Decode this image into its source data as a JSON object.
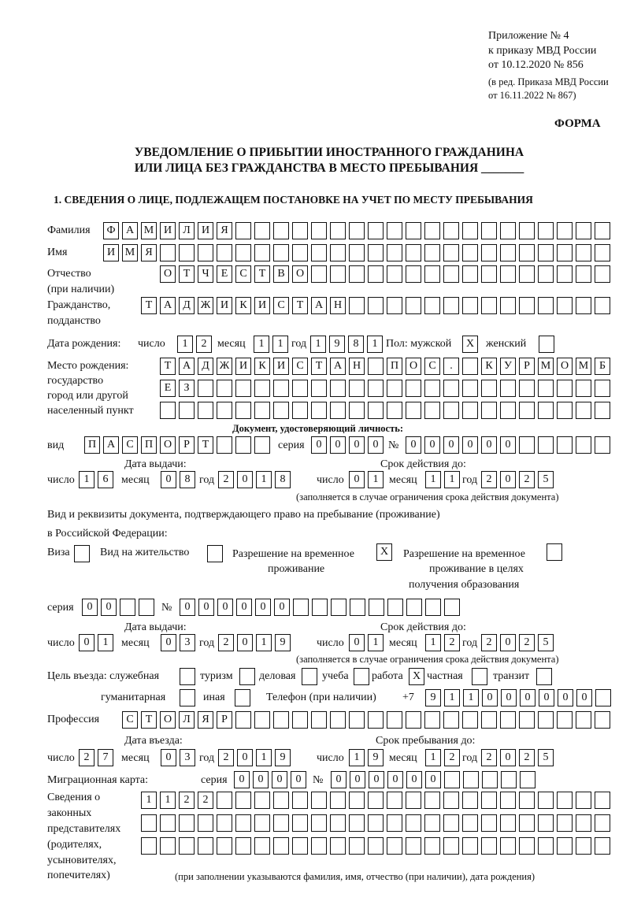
{
  "header": {
    "appendix": "Приложение № 4",
    "order": "к приказу МВД России",
    "order_date": "от 10.12.2020 № 856",
    "edition_1": "(в ред. Приказа МВД России",
    "edition_2": "от 16.11.2022 № 867)",
    "form_label": "ФОРМА"
  },
  "title": {
    "line1": "УВЕДОМЛЕНИЕ О ПРИБЫТИИ ИНОСТРАННОГО ГРАЖДАНИНА",
    "line2": "ИЛИ ЛИЦА БЕЗ ГРАЖДАНСТВА В МЕСТО ПРЕБЫВАНИЯ _______"
  },
  "section1": {
    "heading": "1. СВЕДЕНИЯ О ЛИЦЕ, ПОДЛЕЖАЩЕМ ПОСТАНОВКЕ НА УЧЕТ ПО МЕСТУ ПРЕБЫВАНИЯ",
    "surname": {
      "label": "Фамилия",
      "value": "ФАМИЛИЯ"
    },
    "name": {
      "label": "Имя",
      "value": "ИМЯ"
    },
    "patronymic": {
      "label1": "Отчество",
      "label2": "(при наличии)",
      "value": "ОТЧЕСТВО"
    },
    "citizenship": {
      "label1": "Гражданство,",
      "label2": "подданство",
      "value": "ТАДЖИКИСТАН"
    },
    "birth_date": {
      "label": "Дата рождения:",
      "day_label": "число",
      "day": "12",
      "month_label": "месяц",
      "month": "11",
      "year_label": "год",
      "year": "1981"
    },
    "sex": {
      "label_male": "Пол: мужской",
      "male": "X",
      "label_female": "женский",
      "female": ""
    },
    "birth_place": {
      "label1": "Место рождения:",
      "label2": "государство",
      "label3": "город или другой",
      "label4": "населенный пункт",
      "line1": "ТАДЖИКИСТАН ПОС. КУРМОМБ",
      "line2": "ЕЗ",
      "line3": ""
    },
    "id_document": {
      "heading": "Документ, удостоверяющий личность:",
      "type_label": "вид",
      "type": "ПАСПОРТ",
      "series_label": "серия",
      "series": "0000",
      "number_label": "№",
      "number": "000000",
      "issue_label": "Дата выдачи:",
      "valid_label": "Срок действия до:",
      "day_label": "число",
      "month_label": "месяц",
      "year_label": "год",
      "issue_day": "16",
      "issue_month": "08",
      "issue_year": "2018",
      "valid_day": "01",
      "valid_month": "11",
      "valid_year": "2025",
      "note": "(заполняется в случае ограничения срока действия документа)"
    },
    "stay_document": {
      "heading1": "Вид и реквизиты документа, подтверждающего право на пребывание (проживание)",
      "heading2": "в Российской Федерации:",
      "visa_label": "Виза",
      "visa": "",
      "residence_label": "Вид на жительство",
      "residence": "",
      "temp_label1": "Разрешение на временное",
      "temp_label2": "проживание",
      "temp": "X",
      "edu_label1": "Разрешение на временное",
      "edu_label2": "проживание в целях",
      "edu_label3": "получения образования",
      "edu": "",
      "series_label": "серия",
      "series": "00",
      "number_label": "№",
      "number": "000000",
      "issue_label": "Дата выдачи:",
      "valid_label": "Срок действия до:",
      "day_label": "число",
      "month_label": "месяц",
      "year_label": "год",
      "issue_day": "01",
      "issue_month": "03",
      "issue_year": "2019",
      "valid_day": "01",
      "valid_month": "12",
      "valid_year": "2025",
      "note": "(заполняется в случае ограничения срока действия документа)"
    },
    "purpose": {
      "label": "Цель въезда: служебная",
      "official": "",
      "tourism_label": "туризм",
      "tourism": "",
      "business_label": "деловая",
      "business": "",
      "study_label": "учеба",
      "study": "",
      "work_label": "работа",
      "work": "X",
      "private_label": "частная",
      "private": "",
      "transit_label": "транзит",
      "transit": "",
      "humanitarian_label": "гуманитарная",
      "humanitarian": "",
      "other_label": "иная",
      "other": ""
    },
    "phone": {
      "label": "Телефон (при наличии)",
      "prefix": "+7",
      "value": "911000000"
    },
    "profession": {
      "label": "Профессия",
      "value": "СТОЛЯР"
    },
    "entry": {
      "entry_label": "Дата въезда:",
      "stay_label": "Срок пребывания до:",
      "day_label": "число",
      "month_label": "месяц",
      "year_label": "год",
      "entry_day": "27",
      "entry_month": "03",
      "entry_year": "2019",
      "stay_day": "19",
      "stay_month": "12",
      "stay_year": "2025"
    },
    "migration_card": {
      "label": "Миграционная карта:",
      "series_label": "серия",
      "series": "0000",
      "number_label": "№",
      "number": "000000"
    },
    "representatives": {
      "label1": "Сведения о",
      "label2": "законных",
      "label3": "представителях",
      "label4": "(родителях,",
      "label5": "усыновителях,",
      "label6": "попечителях)",
      "line1": "1122",
      "line2": "",
      "line3": "",
      "note": "(при заполнении указываются фамилия, имя, отчество (при наличии), дата рождения)"
    }
  }
}
